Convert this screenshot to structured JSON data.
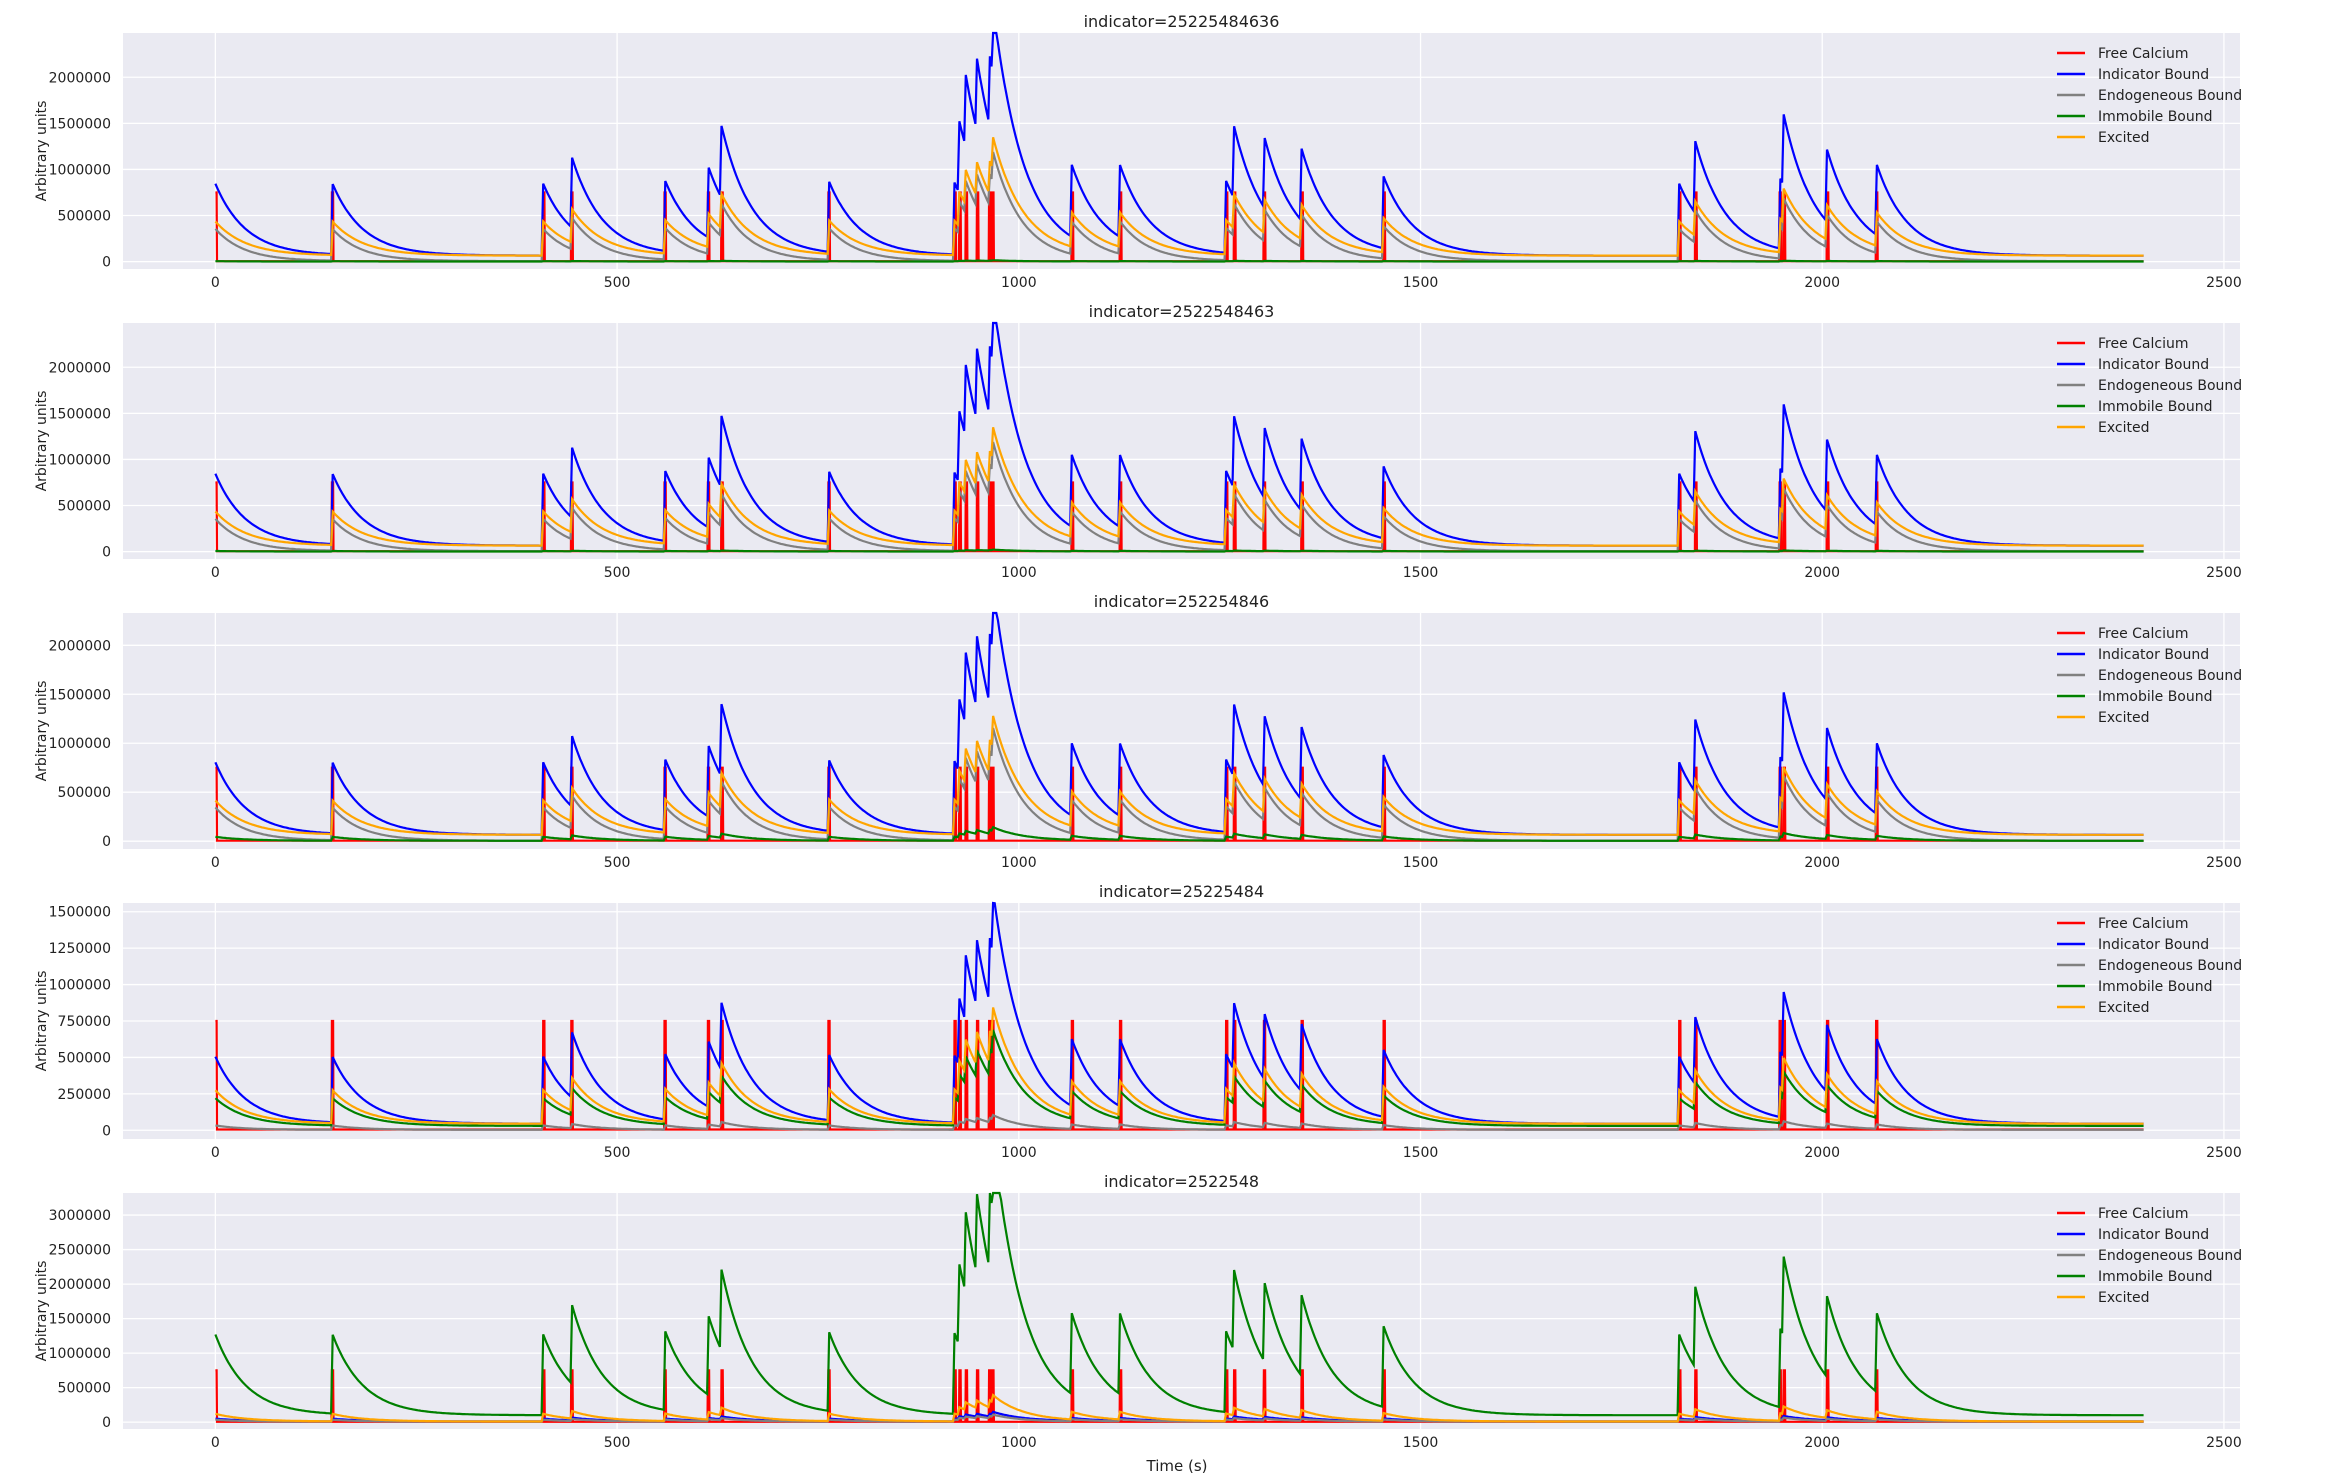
{
  "figure": {
    "xlabel": "Time (s)"
  },
  "legend_items": [
    {
      "label": "Free Calcium",
      "color": "#ff0000"
    },
    {
      "label": "Indicator Bound",
      "color": "#0000ff"
    },
    {
      "label": "Endogeneous Bound",
      "color": "#808080"
    },
    {
      "label": "Immobile Bound",
      "color": "#008000"
    },
    {
      "label": "Excited",
      "color": "#ffa500"
    }
  ],
  "chart_data": [
    {
      "type": "line",
      "title": "indicator=25225484636",
      "xlabel": "",
      "ylabel": "Arbitrary units",
      "xlim": [
        -115,
        2520
      ],
      "ylim": [
        -80000,
        2480000
      ],
      "xticks": [
        0,
        500,
        1000,
        1500,
        2000,
        2500
      ],
      "yticks": [
        0,
        500000,
        1000000,
        1500000,
        2000000
      ],
      "grid": true,
      "legend": "top-right",
      "events": [
        0,
        145,
        408,
        443,
        559,
        613,
        630,
        763,
        920,
        926,
        934,
        948,
        963,
        967,
        1066,
        1126,
        1258,
        1268,
        1305,
        1352,
        1454,
        1822,
        1842,
        1947,
        1952,
        2006,
        2067
      ],
      "series": [
        {
          "name": "Free Calcium",
          "color": "#ff0000",
          "peak": 745000,
          "baseline": 5000,
          "tau": 1
        },
        {
          "name": "Indicator Bound",
          "color": "#0000ff",
          "peak": 780000,
          "baseline": 65000,
          "tau": 38
        },
        {
          "name": "Endogeneous Bound",
          "color": "#808080",
          "peak": 350000,
          "baseline": 5000,
          "tau": 36
        },
        {
          "name": "Immobile Bound",
          "color": "#008000",
          "peak": 4000,
          "baseline": 1000,
          "tau": 38
        },
        {
          "name": "Excited",
          "color": "#ffa500",
          "peak": 370000,
          "baseline": 65000,
          "tau": 38
        }
      ]
    },
    {
      "type": "line",
      "title": "indicator=2522548463",
      "xlabel": "",
      "ylabel": "Arbitrary units",
      "xlim": [
        -115,
        2520
      ],
      "ylim": [
        -80000,
        2480000
      ],
      "xticks": [
        0,
        500,
        1000,
        1500,
        2000,
        2500
      ],
      "yticks": [
        0,
        500000,
        1000000,
        1500000,
        2000000
      ],
      "grid": true,
      "legend": "top-right",
      "events": [
        0,
        145,
        408,
        443,
        559,
        613,
        630,
        763,
        920,
        926,
        934,
        948,
        963,
        967,
        1066,
        1126,
        1258,
        1268,
        1305,
        1352,
        1454,
        1822,
        1842,
        1947,
        1952,
        2006,
        2067
      ],
      "series": [
        {
          "name": "Free Calcium",
          "color": "#ff0000",
          "peak": 745000,
          "baseline": 5000,
          "tau": 1
        },
        {
          "name": "Indicator Bound",
          "color": "#0000ff",
          "peak": 780000,
          "baseline": 65000,
          "tau": 38
        },
        {
          "name": "Endogeneous Bound",
          "color": "#808080",
          "peak": 350000,
          "baseline": 5000,
          "tau": 36
        },
        {
          "name": "Immobile Bound",
          "color": "#008000",
          "peak": 6000,
          "baseline": 1000,
          "tau": 38
        },
        {
          "name": "Excited",
          "color": "#ffa500",
          "peak": 370000,
          "baseline": 65000,
          "tau": 38
        }
      ]
    },
    {
      "type": "line",
      "title": "indicator=252254846",
      "xlabel": "",
      "ylabel": "Arbitrary units",
      "xlim": [
        -115,
        2520
      ],
      "ylim": [
        -80000,
        2330000
      ],
      "xticks": [
        0,
        500,
        1000,
        1500,
        2000,
        2500
      ],
      "yticks": [
        0,
        500000,
        1000000,
        1500000,
        2000000
      ],
      "grid": true,
      "legend": "top-right",
      "events": [
        0,
        145,
        408,
        443,
        559,
        613,
        630,
        763,
        920,
        926,
        934,
        948,
        963,
        967,
        1066,
        1126,
        1258,
        1268,
        1305,
        1352,
        1454,
        1822,
        1842,
        1947,
        1952,
        2006,
        2067
      ],
      "series": [
        {
          "name": "Free Calcium",
          "color": "#ff0000",
          "peak": 745000,
          "baseline": 5000,
          "tau": 1
        },
        {
          "name": "Indicator Bound",
          "color": "#0000ff",
          "peak": 740000,
          "baseline": 65000,
          "tau": 38
        },
        {
          "name": "Endogeneous Bound",
          "color": "#808080",
          "peak": 340000,
          "baseline": 5000,
          "tau": 36
        },
        {
          "name": "Immobile Bound",
          "color": "#008000",
          "peak": 40000,
          "baseline": 4000,
          "tau": 38
        },
        {
          "name": "Excited",
          "color": "#ffa500",
          "peak": 350000,
          "baseline": 65000,
          "tau": 38
        }
      ]
    },
    {
      "type": "line",
      "title": "indicator=25225484",
      "xlabel": "",
      "ylabel": "Arbitrary units",
      "xlim": [
        -115,
        2520
      ],
      "ylim": [
        -60000,
        1560000
      ],
      "xticks": [
        0,
        500,
        1000,
        1500,
        2000,
        2500
      ],
      "yticks": [
        0,
        250000,
        500000,
        750000,
        1000000,
        1250000,
        1500000
      ],
      "grid": true,
      "legend": "top-right",
      "events": [
        0,
        145,
        408,
        443,
        559,
        613,
        630,
        763,
        920,
        926,
        934,
        948,
        963,
        967,
        1066,
        1126,
        1258,
        1268,
        1305,
        1352,
        1454,
        1822,
        1842,
        1947,
        1952,
        2006,
        2067
      ],
      "series": [
        {
          "name": "Free Calcium",
          "color": "#ff0000",
          "peak": 745000,
          "baseline": 5000,
          "tau": 1
        },
        {
          "name": "Indicator Bound",
          "color": "#0000ff",
          "peak": 460000,
          "baseline": 45000,
          "tau": 38
        },
        {
          "name": "Endogeneous Bound",
          "color": "#808080",
          "peak": 30000,
          "baseline": 3000,
          "tau": 36
        },
        {
          "name": "Immobile Bound",
          "color": "#008000",
          "peak": 190000,
          "baseline": 30000,
          "tau": 38
        },
        {
          "name": "Excited",
          "color": "#ffa500",
          "peak": 230000,
          "baseline": 45000,
          "tau": 38
        }
      ]
    },
    {
      "type": "line",
      "title": "indicator=2522548",
      "xlabel": "Time (s)",
      "ylabel": "Arbitrary units",
      "xlim": [
        -115,
        2520
      ],
      "ylim": [
        -100000,
        3320000
      ],
      "xticks": [
        0,
        500,
        1000,
        1500,
        2000,
        2500
      ],
      "yticks": [
        0,
        500000,
        1000000,
        1500000,
        2000000,
        2500000,
        3000000
      ],
      "grid": true,
      "legend": "top-right",
      "events": [
        0,
        145,
        408,
        443,
        559,
        613,
        630,
        763,
        920,
        926,
        934,
        948,
        963,
        967,
        1066,
        1126,
        1258,
        1268,
        1305,
        1352,
        1454,
        1822,
        1842,
        1947,
        1952,
        2006,
        2067
      ],
      "series": [
        {
          "name": "Free Calcium",
          "color": "#ff0000",
          "peak": 745000,
          "baseline": 5000,
          "tau": 1
        },
        {
          "name": "Indicator Bound",
          "color": "#0000ff",
          "peak": 40000,
          "baseline": 10000,
          "tau": 38
        },
        {
          "name": "Endogeneous Bound",
          "color": "#808080",
          "peak": 30000,
          "baseline": 5000,
          "tau": 36
        },
        {
          "name": "Immobile Bound",
          "color": "#008000",
          "peak": 1170000,
          "baseline": 100000,
          "tau": 38
        },
        {
          "name": "Excited",
          "color": "#ffa500",
          "peak": 110000,
          "baseline": 10000,
          "tau": 38
        }
      ]
    }
  ]
}
